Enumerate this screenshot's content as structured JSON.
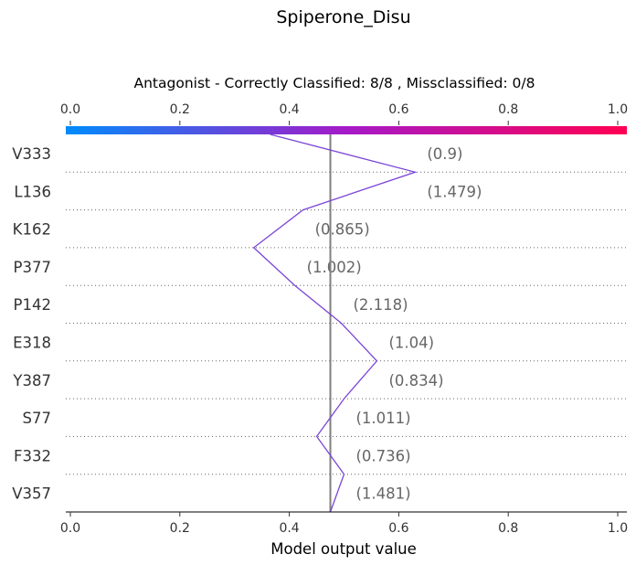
{
  "chart_data": {
    "type": "line",
    "title": "Spiperone_Disu",
    "subtitle": "Antagonist - Correctly Classified: 8/8 , Missclassified: 0/8",
    "xlabel": "Model output value",
    "xlim": [
      0.0,
      1.0
    ],
    "x_ticks": [
      "0.0",
      "0.2",
      "0.4",
      "0.6",
      "0.8",
      "1.0"
    ],
    "top_ticks": [
      "0.0",
      "0.2",
      "0.4",
      "0.6",
      "0.8",
      "1.0"
    ],
    "base_value": 0.475,
    "colorbar": {
      "from": "#008bfb",
      "mid": "#a51ac8",
      "to": "#ff0052"
    },
    "line_color": "#7b45d6",
    "features": [
      {
        "name": "V333",
        "label": "(0.9)"
      },
      {
        "name": "L136",
        "label": "(1.479)"
      },
      {
        "name": "K162",
        "label": "(0.865)"
      },
      {
        "name": "P377",
        "label": "(1.002)"
      },
      {
        "name": "P142",
        "label": "(2.118)"
      },
      {
        "name": "E318",
        "label": "(1.04)"
      },
      {
        "name": "Y387",
        "label": "(0.834)"
      },
      {
        "name": "S77",
        "label": "(1.011)"
      },
      {
        "name": "F332",
        "label": "(0.736)"
      },
      {
        "name": "V357",
        "label": "(1.481)"
      }
    ],
    "path_values": [
      0.365,
      0.63,
      0.425,
      0.335,
      0.41,
      0.495,
      0.56,
      0.5,
      0.45,
      0.5,
      0.475
    ]
  }
}
